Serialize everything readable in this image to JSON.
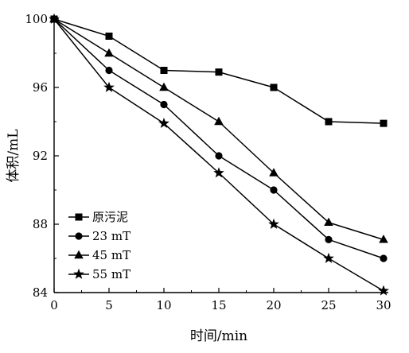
{
  "chart_data": {
    "type": "line",
    "xlabel": "时间/min",
    "ylabel": "体积/mL",
    "x": [
      0,
      5,
      10,
      15,
      20,
      25,
      30
    ],
    "xlim": [
      0,
      30
    ],
    "ylim": [
      84,
      100
    ],
    "xticks": [
      "0",
      "5",
      "10",
      "15",
      "20",
      "25",
      "30"
    ],
    "yticks": [
      "84",
      "88",
      "92",
      "96",
      "100"
    ],
    "grid": false,
    "legend_position": "bottom-left",
    "series": [
      {
        "name": "原污泥",
        "marker": "square",
        "values": [
          100,
          99,
          97,
          96.9,
          96,
          94,
          93.9
        ]
      },
      {
        "name": "23 mT",
        "marker": "circle",
        "values": [
          100,
          97,
          95,
          92,
          90,
          87.1,
          86
        ]
      },
      {
        "name": "45 mT",
        "marker": "triangle",
        "values": [
          100,
          98,
          96,
          94,
          91,
          88.1,
          87.1
        ]
      },
      {
        "name": "55 mT",
        "marker": "star",
        "values": [
          100,
          96,
          93.9,
          91,
          88,
          86,
          84.1
        ]
      }
    ],
    "colors": {
      "line": "#000000",
      "marker": "#000000",
      "axis": "#000000"
    }
  }
}
